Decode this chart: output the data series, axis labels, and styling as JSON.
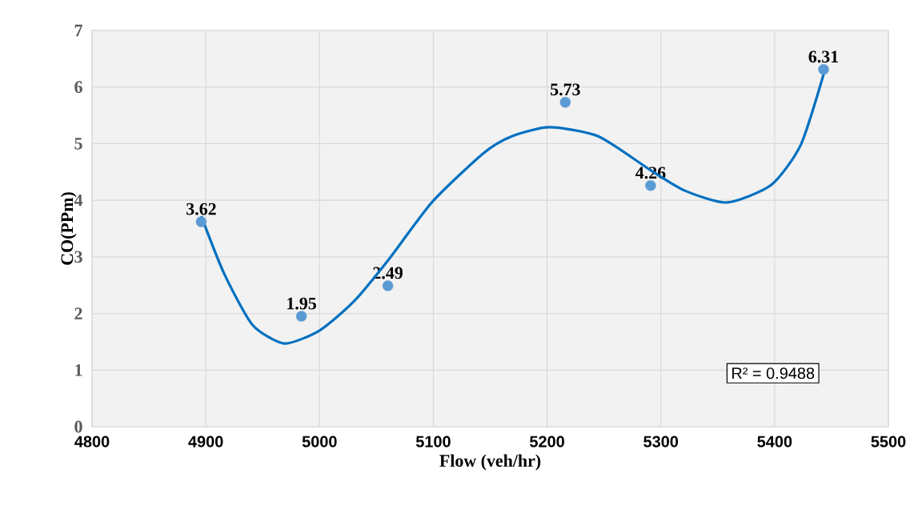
{
  "chart_data": {
    "type": "scatter",
    "xlabel": "Flow (veh/hr)",
    "ylabel": "CO(PPm)",
    "xlim": [
      4800,
      5500
    ],
    "xticks": [
      4800,
      4900,
      5000,
      5100,
      5200,
      5300,
      5400,
      5500
    ],
    "ylim": [
      0,
      7
    ],
    "yticks": [
      0,
      1,
      2,
      3,
      4,
      5,
      6,
      7
    ],
    "grid": true,
    "annotations": [
      "R² = 0.9488"
    ],
    "series": [
      {
        "type": "scatter",
        "color": "#5b9bd5",
        "x": [
          4896,
          4984,
          5060,
          5216,
          5291,
          5443
        ],
        "values": [
          3.62,
          1.95,
          2.49,
          5.73,
          4.26,
          6.31
        ],
        "value_labels": [
          "3.62",
          "1.95",
          "2.49",
          "5.73",
          "4.26",
          "6.31"
        ]
      },
      {
        "type": "line",
        "color": "#0070c0",
        "x": [
          4896,
          4916,
          4941,
          4969,
          5000,
          5030,
          5061,
          5099,
          5144,
          5169,
          5202,
          5245,
          5291,
          5321,
          5358,
          5397,
          5423,
          5444
        ],
        "values": [
          3.72,
          2.71,
          1.8,
          1.47,
          1.7,
          2.21,
          2.96,
          3.97,
          4.83,
          5.13,
          5.29,
          5.13,
          4.53,
          4.17,
          3.96,
          4.27,
          4.98,
          6.29
        ]
      }
    ]
  }
}
